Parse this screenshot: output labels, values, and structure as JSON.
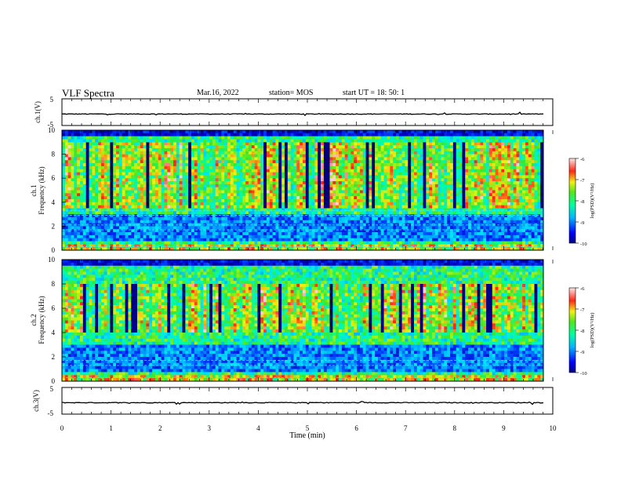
{
  "header": {
    "title": "VLF Spectra",
    "date": "Mar.16, 2022",
    "station": "station= MOS",
    "start": "start  UT =   18: 50: 1"
  },
  "colors": {
    "colormap": [
      "#000000",
      "#0b0b6e",
      "#1030c8",
      "#1e8cff",
      "#28d7ff",
      "#2cf0a0",
      "#3ce61e",
      "#b4f00a",
      "#f0e614",
      "#ff8c14",
      "#ff1e14",
      "#ffdcdc"
    ],
    "trace": "#000000"
  },
  "chart_data": [
    {
      "type": "line",
      "name": "ch1-waveform",
      "ylabel": "ch.1(V)",
      "ylim": [
        -5,
        5
      ],
      "yticks": [
        "5",
        "-5"
      ],
      "xlim": [
        0,
        10
      ],
      "y_value_approx": -0.7
    },
    {
      "type": "heatmap",
      "name": "ch1-spectrogram",
      "ylabel": "ch.1\nFrequency (kHz)",
      "ylim": [
        0,
        10
      ],
      "yticks": [
        "0",
        "2",
        "4",
        "6",
        "8",
        "10"
      ],
      "xlim": [
        0,
        10
      ],
      "colorbar": {
        "label": "log(PSD)(V²/Hz)",
        "range": [
          -10,
          -6
        ],
        "ticks": [
          "-6",
          "-7",
          "-8",
          "-9",
          "-10"
        ]
      },
      "description_values": {
        "high_power_band_khz": [
          3.5,
          9.0
        ],
        "low_power_band_khz": [
          0.8,
          3.0
        ],
        "lines_khz": [
          0.3,
          1.7,
          2.1,
          2.9,
          3.3
        ]
      }
    },
    {
      "type": "heatmap",
      "name": "ch2-spectrogram",
      "ylabel": "ch.2\nFrequency (kHz)",
      "ylim": [
        0,
        10
      ],
      "yticks": [
        "0",
        "2",
        "4",
        "6",
        "8",
        "10"
      ],
      "xlim": [
        0,
        10
      ],
      "colorbar": {
        "label": "log(PSD)(V²/Hz)",
        "range": [
          -10,
          -6
        ],
        "ticks": [
          "-6",
          "-7",
          "-8",
          "-9",
          "-10"
        ]
      },
      "description_values": {
        "high_power_band_khz": [
          4.0,
          8.0
        ],
        "low_power_band_khz": [
          0.8,
          3.0
        ],
        "lines_khz": [
          0.3,
          1.3,
          1.7
        ]
      }
    },
    {
      "type": "line",
      "name": "ch3-waveform",
      "ylabel": "ch.3(V)",
      "ylim": [
        -5,
        5
      ],
      "yticks": [
        "5",
        "-5"
      ],
      "xlim": [
        0,
        10
      ],
      "y_value_approx": -0.7
    }
  ],
  "xaxis": {
    "label": "Time  (min)",
    "ticks": [
      "0",
      "1",
      "2",
      "3",
      "4",
      "5",
      "6",
      "7",
      "8",
      "9",
      "10"
    ]
  }
}
